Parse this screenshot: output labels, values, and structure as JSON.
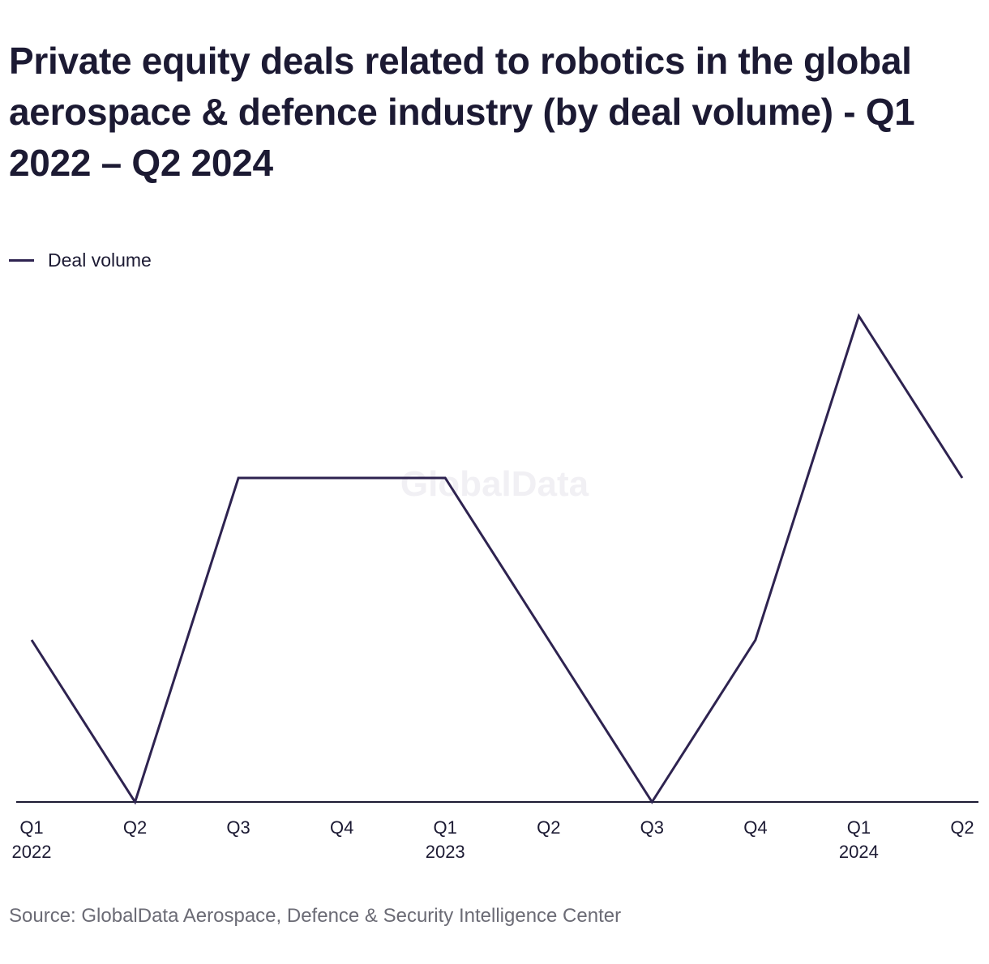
{
  "title": "Private equity deals related to robotics in the global aerospace & defence industry (by deal volume) - Q1 2022 – Q2 2024",
  "legend": {
    "label": "Deal volume"
  },
  "watermark": "GlobalData",
  "source": "Source: GlobalData Aerospace, Defence & Security Intelligence Center",
  "colors": {
    "line": "#2e2350",
    "axis": "#1c1a33",
    "text": "#1c1a33",
    "source_text": "#6b6b75"
  },
  "chart_data": {
    "type": "line",
    "title": "Private equity deals related to robotics in the global aerospace & defence industry (by deal volume) - Q1 2022 – Q2 2024",
    "xlabel": "",
    "ylabel": "",
    "categories": [
      "Q1 2022",
      "Q2 2022",
      "Q3 2022",
      "Q4 2022",
      "Q1 2023",
      "Q2 2023",
      "Q3 2023",
      "Q4 2023",
      "Q1 2024",
      "Q2 2024"
    ],
    "x_tick_labels": [
      {
        "quarter": "Q1",
        "year": "2022"
      },
      {
        "quarter": "Q2",
        "year": ""
      },
      {
        "quarter": "Q3",
        "year": ""
      },
      {
        "quarter": "Q4",
        "year": ""
      },
      {
        "quarter": "Q1",
        "year": "2023"
      },
      {
        "quarter": "Q2",
        "year": ""
      },
      {
        "quarter": "Q3",
        "year": ""
      },
      {
        "quarter": "Q4",
        "year": ""
      },
      {
        "quarter": "Q1",
        "year": "2024"
      },
      {
        "quarter": "Q2",
        "year": ""
      }
    ],
    "series": [
      {
        "name": "Deal volume",
        "values": [
          1,
          0,
          2,
          2,
          2,
          1,
          0,
          1,
          3,
          2
        ]
      }
    ],
    "ylim": [
      0,
      3
    ],
    "y_axis_visible": false,
    "grid": false,
    "legend_position": "top-left"
  }
}
